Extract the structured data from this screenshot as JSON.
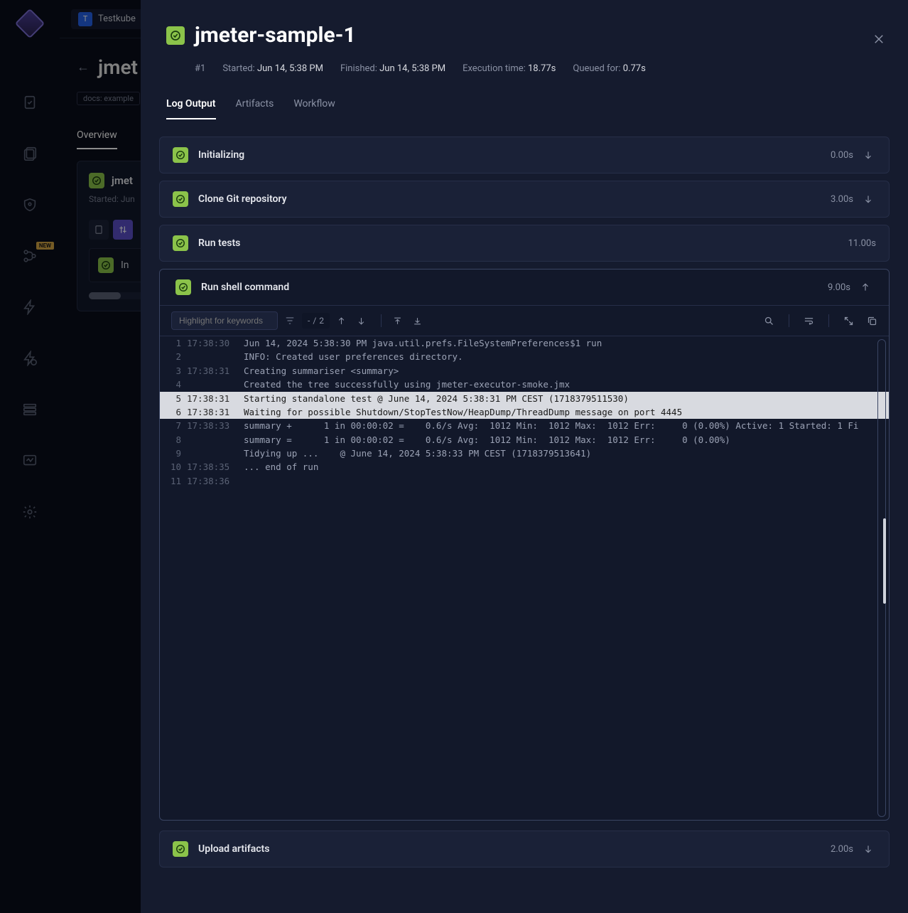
{
  "org": {
    "avatar_letter": "T",
    "name": "Testkube"
  },
  "bg": {
    "title": "jmet",
    "docs_label": "docs: example",
    "tabs": {
      "overview": "Overview"
    },
    "run_title": "jmet",
    "run_started": "Started: Jun",
    "subcard_text": "In"
  },
  "header": {
    "title": "jmeter-sample-1",
    "run_number": "#1",
    "started_label": "Started:",
    "started_value": "Jun 14, 5:38 PM",
    "finished_label": "Finished:",
    "finished_value": "Jun 14, 5:38 PM",
    "exec_label": "Execution time:",
    "exec_value": "18.77s",
    "queued_label": "Queued for:",
    "queued_value": "0.77s"
  },
  "tabs": {
    "log": "Log Output",
    "artifacts": "Artifacts",
    "workflow": "Workflow"
  },
  "steps": {
    "init": {
      "title": "Initializing",
      "time": "0.00s"
    },
    "clone": {
      "title": "Clone Git repository",
      "time": "3.00s"
    },
    "runtests": {
      "title": "Run tests",
      "time": "11.00s"
    },
    "shell": {
      "title": "Run shell command",
      "time": "9.00s"
    },
    "upload": {
      "title": "Upload artifacts",
      "time": "2.00s"
    }
  },
  "toolbar": {
    "search_placeholder": "Highlight for keywords",
    "count_current": "-",
    "count_sep": "/",
    "count_total": "2"
  },
  "log": [
    {
      "n": "1",
      "ts": "17:38:30",
      "txt": "Jun 14, 2024 5:38:30 PM java.util.prefs.FileSystemPreferences$1 run",
      "hl": false
    },
    {
      "n": "2",
      "ts": "",
      "txt": "INFO: Created user preferences directory.",
      "hl": false
    },
    {
      "n": "3",
      "ts": "17:38:31",
      "txt": "Creating summariser <summary>",
      "hl": false
    },
    {
      "n": "4",
      "ts": "",
      "txt": "Created the tree successfully using jmeter-executor-smoke.jmx",
      "hl": false
    },
    {
      "n": "5",
      "ts": "17:38:31",
      "txt": "Starting standalone test @ June 14, 2024 5:38:31 PM CEST (1718379511530)",
      "hl": true
    },
    {
      "n": "6",
      "ts": "17:38:31",
      "txt": "Waiting for possible Shutdown/StopTestNow/HeapDump/ThreadDump message on port 4445",
      "hl": true
    },
    {
      "n": "7",
      "ts": "17:38:33",
      "txt": "summary +      1 in 00:00:02 =    0.6/s Avg:  1012 Min:  1012 Max:  1012 Err:     0 (0.00%) Active: 1 Started: 1 Fi",
      "hl": false
    },
    {
      "n": "8",
      "ts": "",
      "txt": "summary =      1 in 00:00:02 =    0.6/s Avg:  1012 Min:  1012 Max:  1012 Err:     0 (0.00%)",
      "hl": false
    },
    {
      "n": "9",
      "ts": "",
      "txt": "Tidying up ...    @ June 14, 2024 5:38:33 PM CEST (1718379513641)",
      "hl": false
    },
    {
      "n": "10",
      "ts": "17:38:35",
      "txt": "... end of run",
      "hl": false
    },
    {
      "n": "11",
      "ts": "17:38:36",
      "txt": "",
      "hl": false
    }
  ],
  "new_badge_label": "NEW"
}
